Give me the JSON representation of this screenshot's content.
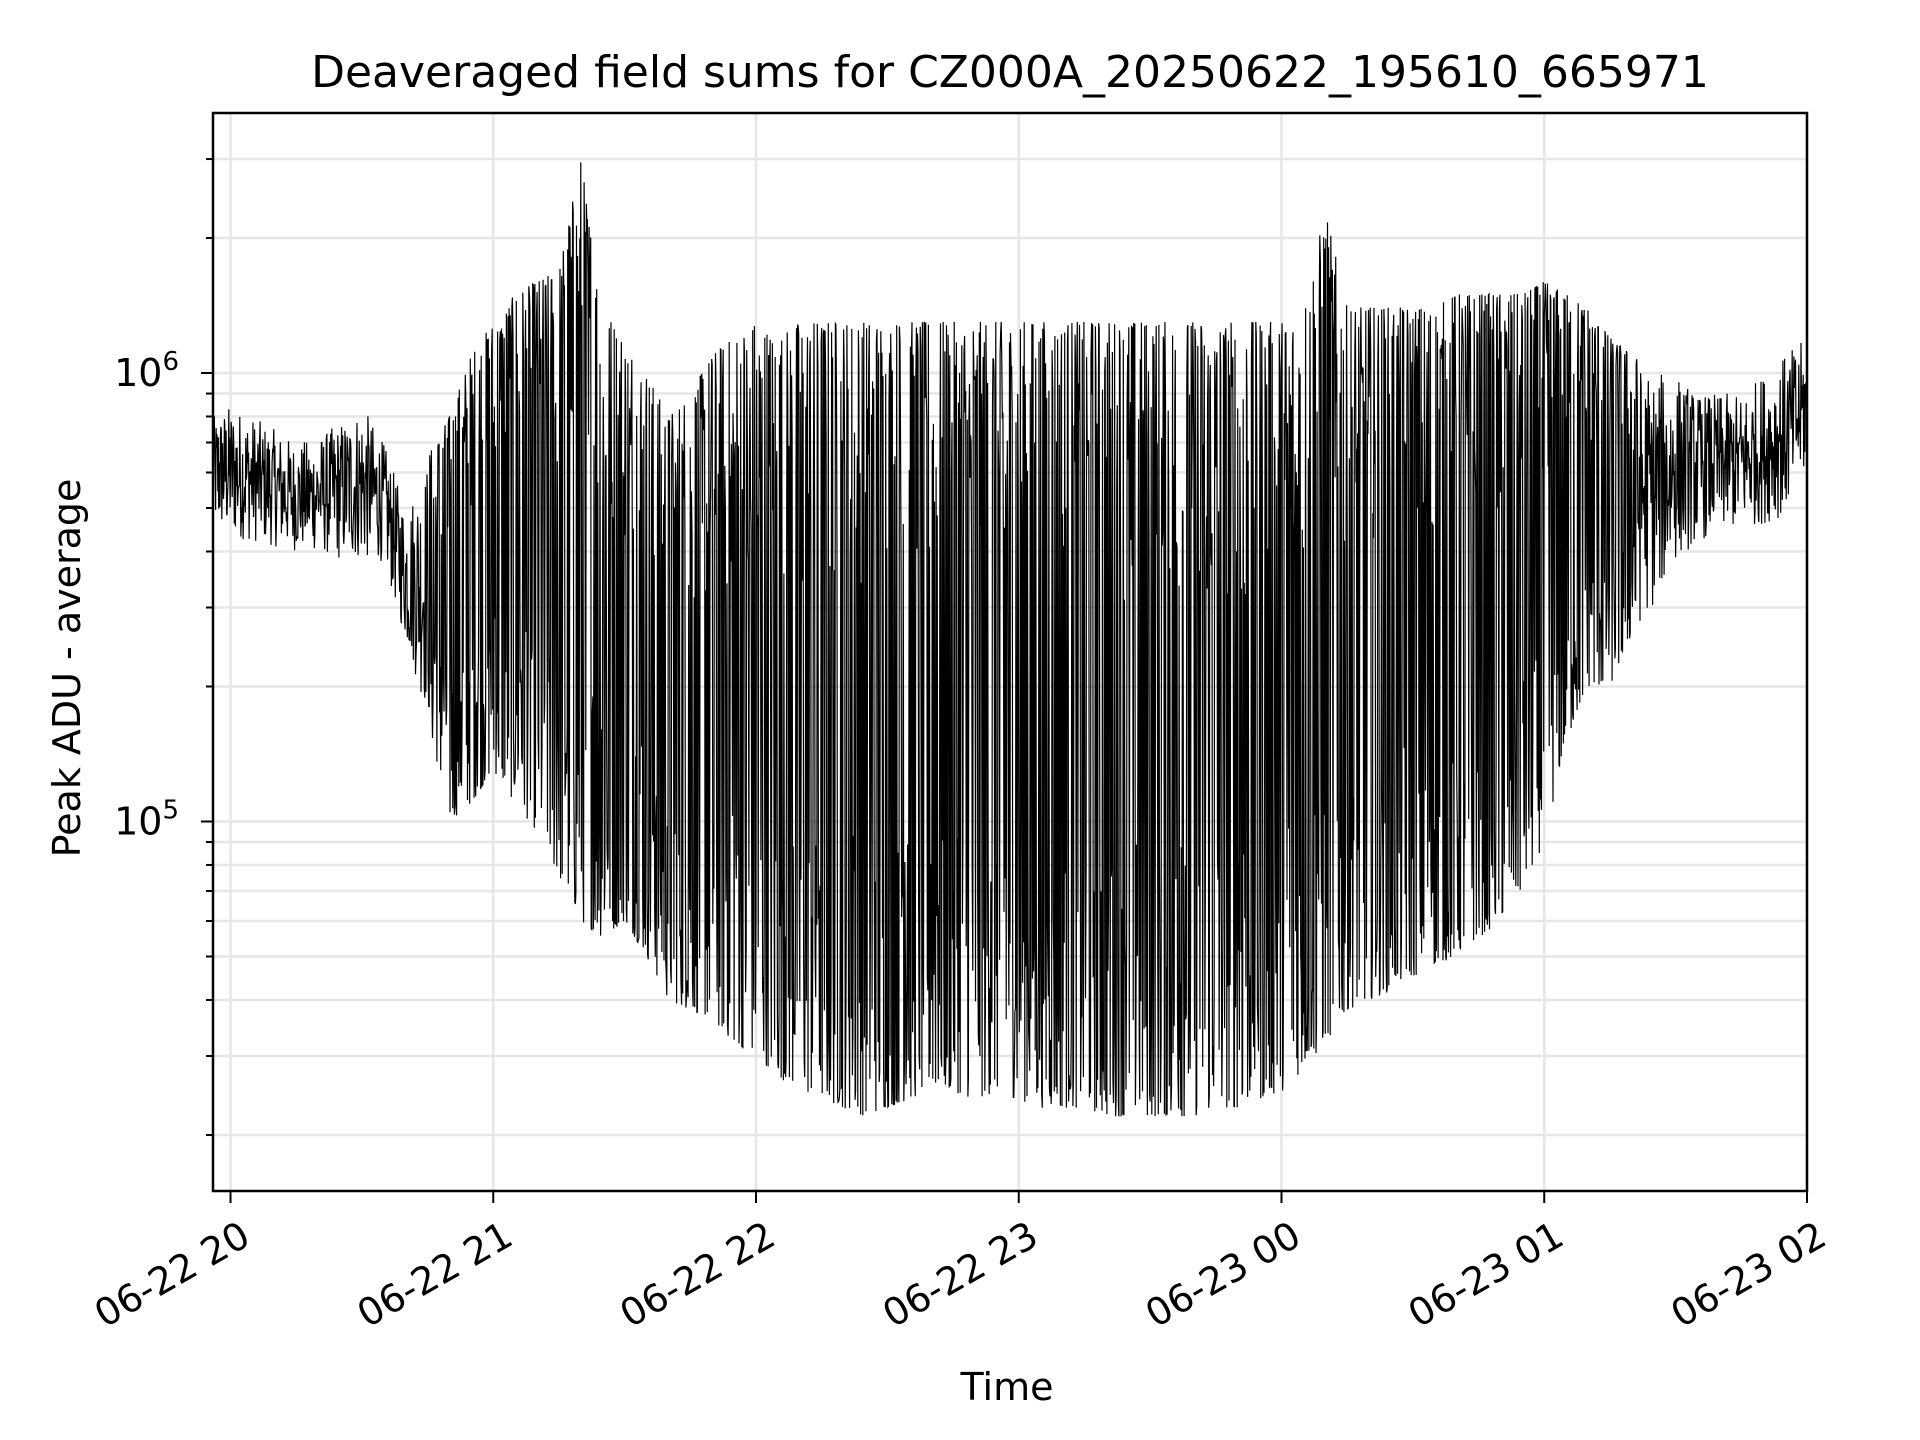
{
  "chart_data": {
    "type": "line",
    "title": "Deaveraged field sums for CZ000A_20250622_195610_665971",
    "xlabel": "Time",
    "ylabel": "Peak ADU - average",
    "yscale": "log",
    "grid": true,
    "xlim": [
      "2025-06-22 19:56",
      "2025-06-23 02:00"
    ],
    "ylim": [
      15000,
      3800000
    ],
    "x_ticks": [
      {
        "value": "2025-06-22 20:00",
        "label": "06-22 20"
      },
      {
        "value": "2025-06-22 21:00",
        "label": "06-22 21"
      },
      {
        "value": "2025-06-22 22:00",
        "label": "06-22 22"
      },
      {
        "value": "2025-06-22 23:00",
        "label": "06-22 23"
      },
      {
        "value": "2025-06-23 00:00",
        "label": "06-23 00"
      },
      {
        "value": "2025-06-23 01:00",
        "label": "06-23 01"
      },
      {
        "value": "2025-06-23 02:00",
        "label": "06-23 02"
      }
    ],
    "y_ticks": [
      {
        "value": 100000,
        "base": "10",
        "exp": "5"
      },
      {
        "value": 1000000,
        "base": "10",
        "exp": "6"
      }
    ],
    "series": [
      {
        "color": "#000000",
        "x": [
          "2025-06-22 19:56",
          "2025-06-22 20:00",
          "2025-06-22 20:05",
          "2025-06-22 20:10",
          "2025-06-22 20:15",
          "2025-06-22 20:20",
          "2025-06-22 20:25",
          "2025-06-22 20:30",
          "2025-06-22 20:35",
          "2025-06-22 20:40",
          "2025-06-22 20:45",
          "2025-06-22 20:50",
          "2025-06-22 20:55",
          "2025-06-22 21:00",
          "2025-06-22 21:05",
          "2025-06-22 21:10",
          "2025-06-22 21:15",
          "2025-06-22 21:20",
          "2025-06-22 21:25",
          "2025-06-22 21:30",
          "2025-06-22 21:35",
          "2025-06-22 21:40",
          "2025-06-22 21:45",
          "2025-06-22 21:50",
          "2025-06-22 21:55",
          "2025-06-22 22:00",
          "2025-06-22 22:05",
          "2025-06-22 22:10",
          "2025-06-22 22:15",
          "2025-06-22 22:20",
          "2025-06-22 22:25",
          "2025-06-22 22:30",
          "2025-06-22 22:35",
          "2025-06-22 22:40",
          "2025-06-22 22:45",
          "2025-06-22 22:50",
          "2025-06-22 22:55",
          "2025-06-22 23:00",
          "2025-06-22 23:05",
          "2025-06-22 23:10",
          "2025-06-22 23:15",
          "2025-06-22 23:20",
          "2025-06-22 23:25",
          "2025-06-22 23:30",
          "2025-06-22 23:35",
          "2025-06-22 23:40",
          "2025-06-22 23:45",
          "2025-06-22 23:50",
          "2025-06-22 23:55",
          "2025-06-23 00:00",
          "2025-06-23 00:05",
          "2025-06-23 00:10",
          "2025-06-23 00:15",
          "2025-06-23 00:20",
          "2025-06-23 00:25",
          "2025-06-23 00:30",
          "2025-06-23 00:35",
          "2025-06-23 00:40",
          "2025-06-23 00:45",
          "2025-06-23 00:50",
          "2025-06-23 00:55",
          "2025-06-23 01:00",
          "2025-06-23 01:05",
          "2025-06-23 01:10",
          "2025-06-23 01:15",
          "2025-06-23 01:20",
          "2025-06-23 01:25",
          "2025-06-23 01:30",
          "2025-06-23 01:35",
          "2025-06-23 01:40",
          "2025-06-23 01:45",
          "2025-06-23 01:50",
          "2025-06-23 01:55",
          "2025-06-23 02:00"
        ],
        "y_low": [
          450000,
          430000,
          420000,
          410000,
          400000,
          400000,
          380000,
          380000,
          380000,
          250000,
          170000,
          100000,
          110000,
          130000,
          110000,
          95000,
          75000,
          60000,
          55000,
          60000,
          50000,
          40000,
          38000,
          36000,
          32000,
          30000,
          27000,
          25000,
          24000,
          23000,
          22000,
          23000,
          24000,
          25000,
          25000,
          24000,
          25000,
          24000,
          23000,
          23000,
          23000,
          22000,
          22000,
          22000,
          22000,
          22000,
          23000,
          23000,
          24000,
          25000,
          28000,
          32000,
          38000,
          40000,
          42000,
          45000,
          48000,
          50000,
          55000,
          60000,
          70000,
          90000,
          150000,
          200000,
          200000,
          260000,
          300000,
          380000,
          420000,
          440000,
          450000,
          460000,
          480000,
          600000
        ],
        "y_high": [
          800000,
          850000,
          800000,
          750000,
          700000,
          720000,
          780000,
          850000,
          700000,
          500000,
          650000,
          800000,
          1100000,
          1300000,
          1500000,
          1600000,
          1700000,
          3000000,
          1400000,
          1200000,
          1000000,
          800000,
          900000,
          1100000,
          1200000,
          1300000,
          1200000,
          1300000,
          1300000,
          1300000,
          1300000,
          1300000,
          1300000,
          1300000,
          1300000,
          1300000,
          1300000,
          1300000,
          1300000,
          1300000,
          1300000,
          1300000,
          1300000,
          1300000,
          1300000,
          1300000,
          1300000,
          1300000,
          1300000,
          1300000,
          1400000,
          2300000,
          1400000,
          1400000,
          1400000,
          1400000,
          1400000,
          1500000,
          1500000,
          1500000,
          1500000,
          1600000,
          1500000,
          1400000,
          1200000,
          1100000,
          1000000,
          1000000,
          900000,
          900000,
          900000,
          1000000,
          1100000,
          1200000
        ]
      }
    ]
  }
}
